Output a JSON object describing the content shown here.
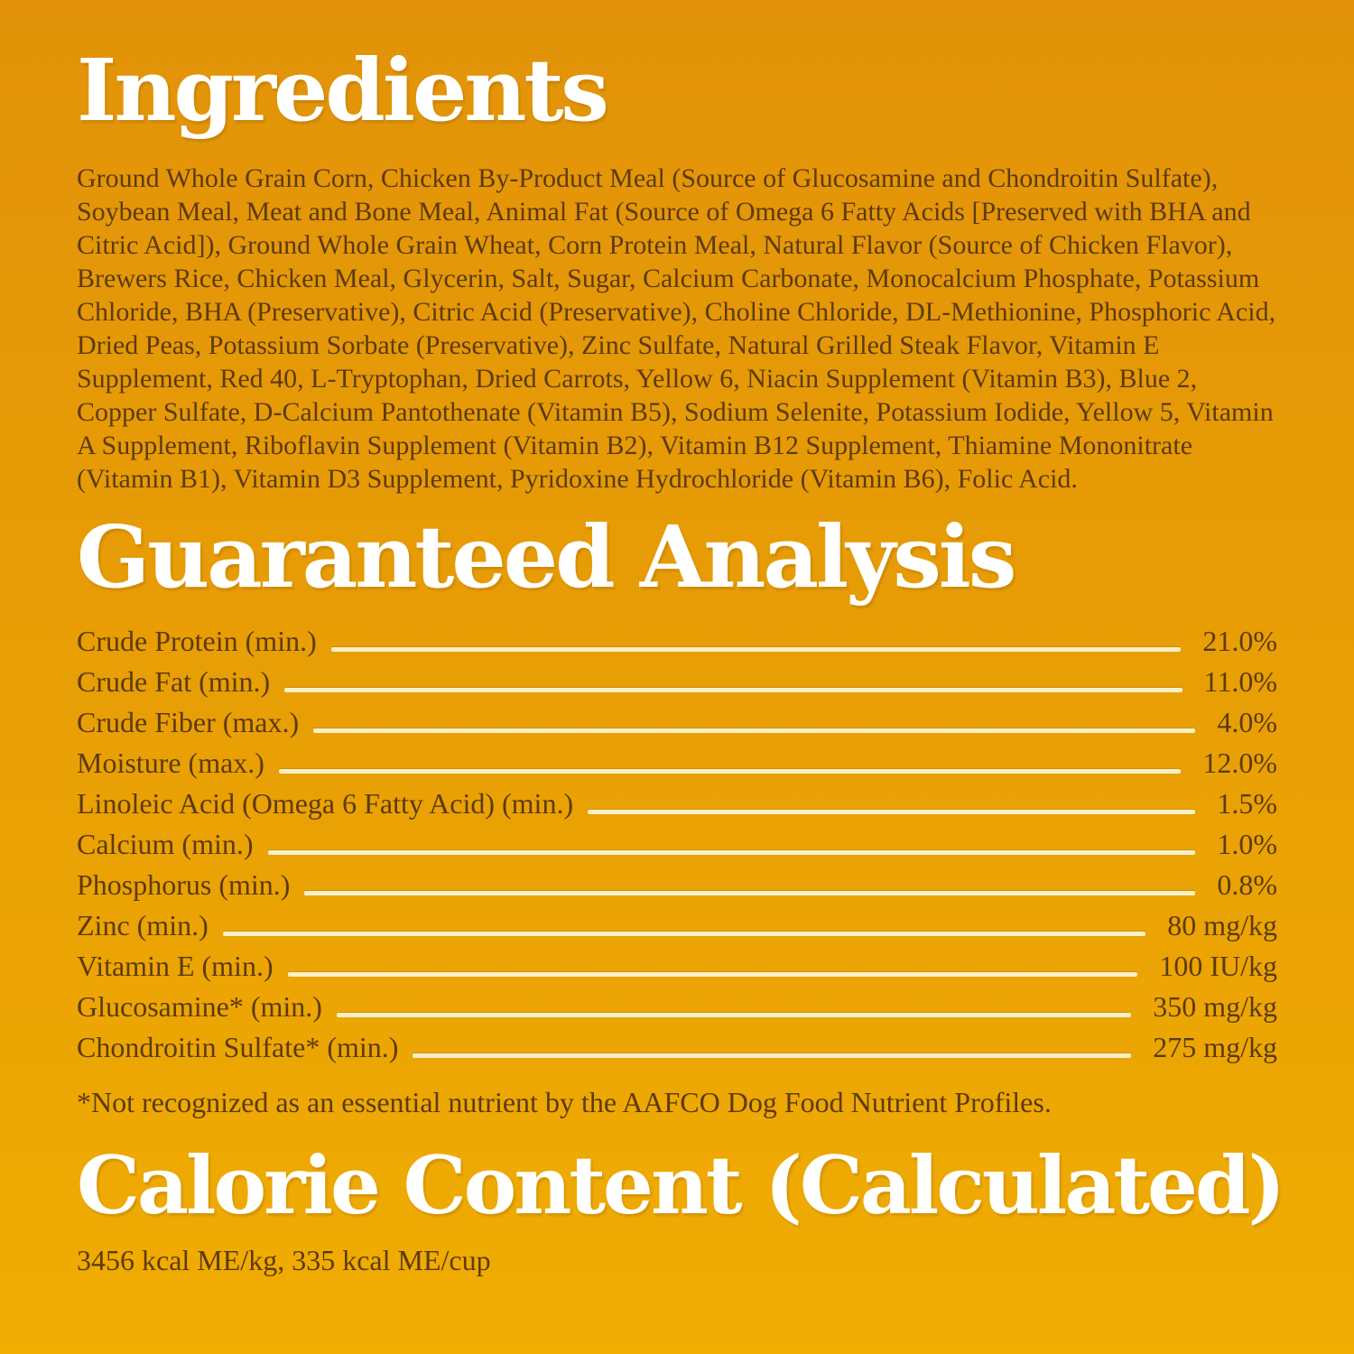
{
  "theme": {
    "background_top": "#e29309",
    "background_bottom": "#f0ad02",
    "heading_color": "#ffffff",
    "text_color": "#5d3b10",
    "leader_line_color": "#f8f0c6"
  },
  "ingredients": {
    "title": "Ingredients",
    "body": "Ground Whole Grain Corn, Chicken By-Product Meal (Source of Glucosamine and Chondroitin Sulfate), Soybean Meal, Meat and Bone Meal, Animal Fat (Source of Omega 6 Fatty Acids [Preserved with BHA and Citric Acid]), Ground Whole Grain Wheat, Corn Protein Meal, Natural Flavor (Source of Chicken Flavor), Brewers Rice, Chicken Meal, Glycerin, Salt, Sugar, Calcium Carbonate, Monocalcium Phosphate, Potassium Chloride, BHA (Preservative), Citric Acid (Preservative), Choline Chloride, DL-Methionine, Phosphoric Acid, Dried Peas, Potassium Sorbate (Preservative), Zinc Sulfate, Natural Grilled Steak Flavor, Vitamin E Supplement, Red 40, L-Tryptophan, Dried Carrots, Yellow 6, Niacin Supplement (Vitamin B3), Blue 2, Copper Sulfate, D-Calcium Pantothenate (Vitamin B5), Sodium Selenite, Potassium Iodide, Yellow 5, Vitamin A Supplement, Riboflavin Supplement (Vitamin B2), Vitamin B12 Supplement, Thiamine Mononitrate (Vitamin B1), Vitamin D3 Supplement, Pyridoxine Hydrochloride (Vitamin B6), Folic Acid."
  },
  "guaranteed_analysis": {
    "title": "Guaranteed Analysis",
    "rows": [
      {
        "label": "Crude Protein (min.)",
        "value": "21.0%"
      },
      {
        "label": "Crude Fat (min.)",
        "value": "11.0%"
      },
      {
        "label": "Crude Fiber (max.)",
        "value": "4.0%"
      },
      {
        "label": "Moisture (max.)",
        "value": "12.0%"
      },
      {
        "label": "Linoleic Acid (Omega 6 Fatty Acid) (min.)",
        "value": "1.5%"
      },
      {
        "label": "Calcium (min.)",
        "value": "1.0%"
      },
      {
        "label": "Phosphorus (min.)",
        "value": "0.8%"
      },
      {
        "label": "Zinc (min.)",
        "value": "80 mg/kg"
      },
      {
        "label": "Vitamin E (min.)",
        "value": "100 IU/kg"
      },
      {
        "label": "Glucosamine* (min.)",
        "value": "350 mg/kg"
      },
      {
        "label": "Chondroitin Sulfate* (min.)",
        "value": "275 mg/kg"
      }
    ],
    "footnote": "*Not recognized as an essential nutrient by the AAFCO Dog Food Nutrient Profiles."
  },
  "calorie_content": {
    "title": "Calorie Content (Calculated)",
    "body": "3456 kcal ME/kg, 335 kcal ME/cup"
  }
}
